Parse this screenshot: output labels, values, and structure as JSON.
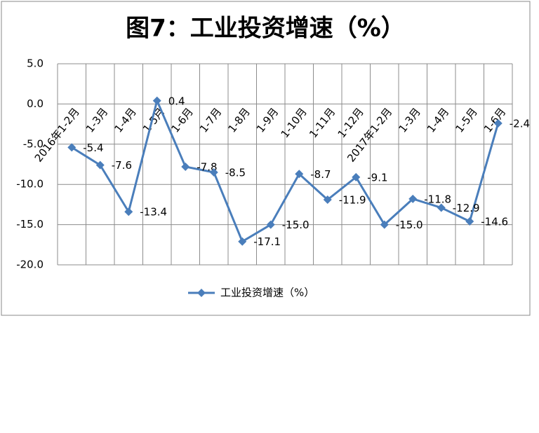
{
  "chart_data": {
    "type": "line",
    "title": "图7：工业投资增速（%）",
    "categories": [
      "2016年1-2月",
      "1-3月",
      "1-4月",
      "1-5月",
      "1-6月",
      "1-7月",
      "1-8月",
      "1-9月",
      "1-10月",
      "1-11月",
      "1-12月",
      "2017年1-2月",
      "1-3月",
      "1-4月",
      "1-5月",
      "1-6月"
    ],
    "series": [
      {
        "name": "工业投资增速（%）",
        "color": "#4a7ebb",
        "values": [
          -5.4,
          -7.6,
          -13.4,
          0.4,
          -7.8,
          -8.5,
          -17.1,
          -15.0,
          -8.7,
          -11.9,
          -9.1,
          -15.0,
          -11.8,
          -12.9,
          -14.6,
          -2.4
        ],
        "value_labels": [
          "-5.4",
          "-7.6",
          "-13.4",
          "0.4",
          "-7.8",
          "-8.5",
          "-17.1",
          "-15.0",
          "-8.7",
          "-11.9",
          "-9.1",
          "-15.0",
          "-11.8",
          "-12.9",
          "-14.6",
          "-2.4"
        ]
      }
    ],
    "ylim": [
      -20,
      5
    ],
    "yticks": [
      {
        "value": 5,
        "label": "5.0"
      },
      {
        "value": 0,
        "label": "0.0"
      },
      {
        "value": -5,
        "label": "-5.0"
      },
      {
        "value": -10,
        "label": "-10.0"
      },
      {
        "value": -15,
        "label": "-15.0"
      },
      {
        "value": -20,
        "label": "-20.0"
      }
    ],
    "grid": true,
    "legend": "bottom"
  }
}
